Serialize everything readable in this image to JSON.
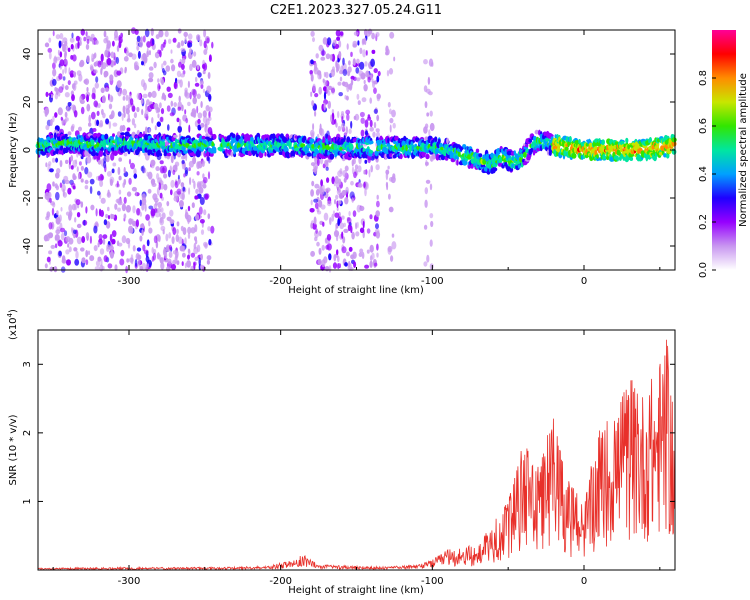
{
  "title": "C2E1.2023.327.05.24.G11",
  "chart_data": [
    {
      "type": "heatmap",
      "xlabel": "Height of straight line (km)",
      "ylabel": "Frequency (Hz)",
      "xlim": [
        -360,
        60
      ],
      "ylim": [
        -50,
        50
      ],
      "xticks": [
        -300,
        -200,
        -100,
        0
      ],
      "yticks": [
        -40,
        -20,
        0,
        20,
        40
      ],
      "colorbar": {
        "label": "Normalized spectral amplitude",
        "range": [
          0,
          1
        ],
        "ticks": [
          0.0,
          0.2,
          0.4,
          0.6,
          0.8
        ],
        "colors": [
          "#ffffff",
          "#c896f0",
          "#9600ff",
          "#1e00ff",
          "#00a0ff",
          "#00e6a0",
          "#32e600",
          "#c8e600",
          "#ff8c00",
          "#ff0000",
          "#ff0096"
        ]
      },
      "ridge": {
        "x": [
          -360,
          -340,
          -320,
          -300,
          -280,
          -260,
          -240,
          -220,
          -200,
          -180,
          -160,
          -140,
          -120,
          -100,
          -90,
          -80,
          -70,
          -60,
          -55,
          -50,
          -45,
          -40,
          -35,
          -30,
          -25,
          -20,
          -10,
          0,
          10,
          20,
          30,
          40,
          50,
          60
        ],
        "y": [
          2,
          3,
          2,
          3,
          2,
          2,
          2,
          2,
          2,
          1,
          1,
          1,
          1,
          1,
          0,
          -2,
          -4,
          -6,
          -3,
          -4,
          -5,
          -3,
          2,
          4,
          3,
          2,
          1,
          0,
          0,
          0,
          0,
          0,
          1,
          2
        ]
      },
      "noise_bands": [
        {
          "x0": -355,
          "x1": -245,
          "density": "high"
        },
        {
          "x0": -180,
          "x1": -135,
          "density": "high"
        },
        {
          "x0": -130,
          "x1": -125,
          "density": "low"
        },
        {
          "x0": -105,
          "x1": -100,
          "density": "low"
        }
      ]
    },
    {
      "type": "line",
      "xlabel": "Height of straight line (km)",
      "ylabel": "SNR (10 * v/v)",
      "y_multiplier": "(x10",
      "y_multiplier_exponent": "4",
      "y_multiplier_suffix": ")",
      "xlim": [
        -360,
        60
      ],
      "ylim": [
        0,
        3.5
      ],
      "xticks": [
        -300,
        -200,
        -100,
        0
      ],
      "yticks": [
        1,
        2,
        3
      ],
      "color": "#e8302a",
      "envelope": {
        "x": [
          -360,
          -300,
          -240,
          -210,
          -190,
          -185,
          -175,
          -140,
          -110,
          -100,
          -90,
          -80,
          -70,
          -60,
          -50,
          -40,
          -30,
          -20,
          -10,
          0,
          10,
          20,
          30,
          40,
          50,
          55,
          60
        ],
        "y": [
          0.03,
          0.04,
          0.04,
          0.06,
          0.15,
          0.25,
          0.08,
          0.05,
          0.07,
          0.15,
          0.3,
          0.35,
          0.35,
          0.7,
          1.0,
          1.9,
          1.5,
          2.3,
          1.3,
          1.0,
          2.1,
          2.4,
          2.8,
          2.6,
          3.1,
          3.4,
          2.0
        ]
      }
    }
  ]
}
